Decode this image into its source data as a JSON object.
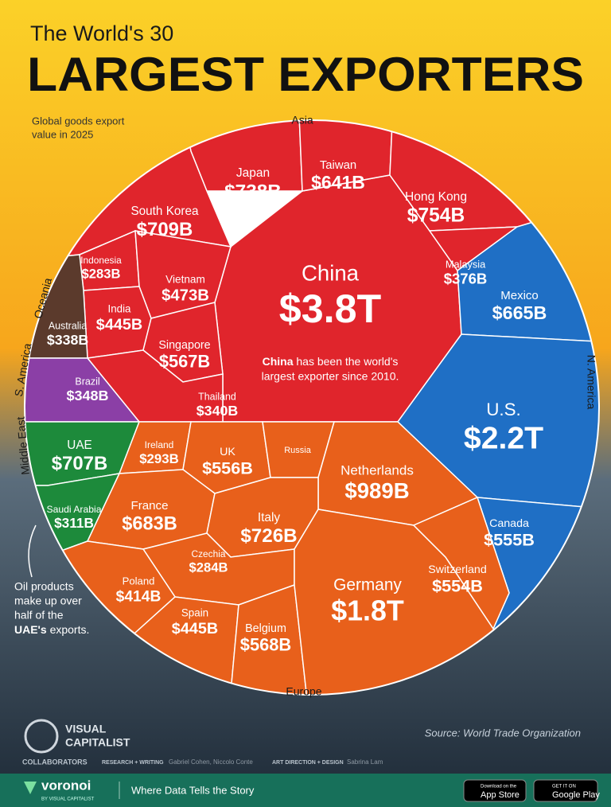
{
  "header": {
    "title_small": "The World's 30",
    "title_big": "LARGEST EXPORTERS",
    "subtitle_lines": [
      "Global goods export",
      "value in 2025"
    ]
  },
  "chart_data": {
    "type": "voronoi",
    "series": [
      {
        "name": "Asia",
        "color": "#e0252c",
        "categories": [
          "China",
          "Japan",
          "Taiwan",
          "Hong Kong",
          "South Korea",
          "Malaysia",
          "Indonesia",
          "Vietnam",
          "India",
          "Singapore",
          "Thailand"
        ],
        "values": [
          3800,
          738,
          641,
          754,
          709,
          376,
          283,
          473,
          445,
          567,
          340
        ],
        "value_labels": [
          "$3.8T",
          "$738B",
          "$641B",
          "$754B",
          "$709B",
          "$376B",
          "$283B",
          "$473B",
          "$445B",
          "$567B",
          "$340B"
        ]
      },
      {
        "name": "Oceania",
        "color": "#5b3a2c",
        "categories": [
          "Australia"
        ],
        "values": [
          338
        ],
        "value_labels": [
          "$338B"
        ]
      },
      {
        "name": "S. America",
        "color": "#8b3fa6",
        "categories": [
          "Brazil"
        ],
        "values": [
          348
        ],
        "value_labels": [
          "$348B"
        ]
      },
      {
        "name": "Middle East",
        "color": "#1d8a3b",
        "categories": [
          "UAE",
          "Saudi Arabia"
        ],
        "values": [
          707,
          311
        ],
        "value_labels": [
          "$707B",
          "$311B"
        ]
      },
      {
        "name": "N. America",
        "color": "#1f6fc5",
        "categories": [
          "Mexico",
          "U.S.",
          "Canada"
        ],
        "values": [
          665,
          2200,
          555
        ],
        "value_labels": [
          "$665B",
          "$2.2T",
          "$555B"
        ]
      },
      {
        "name": "Europe",
        "color": "#e8601b",
        "categories": [
          "Ireland",
          "UK",
          "Russia",
          "Netherlands",
          "France",
          "Italy",
          "Czechia",
          "Poland",
          "Spain",
          "Belgium",
          "Germany",
          "Switzerland"
        ],
        "values": [
          293,
          556,
          null,
          989,
          683,
          726,
          284,
          414,
          445,
          568,
          1800,
          554
        ],
        "value_labels": [
          "$293B",
          "$556B",
          null,
          "$989B",
          "$683B",
          "$726B",
          "$284B",
          "$414B",
          "$445B",
          "$568B",
          "$1.8T",
          "$554B"
        ]
      }
    ]
  },
  "china_note": {
    "bold": "China",
    "rest": " has been the world's",
    "line2": "largest exporter since 2010."
  },
  "uae_note": {
    "lines": [
      "Oil products",
      "make up over",
      "half of the"
    ],
    "bold": "UAE's",
    "end": " exports."
  },
  "source": "Source: World Trade Organization",
  "footer": {
    "brand_top": "VISUAL",
    "brand_bottom": "CAPITALIST",
    "collaborators": "COLLABORATORS",
    "research_label": "RESEARCH + WRITING",
    "research_names": "Gabriel Cohen, Niccolo Conte",
    "design_label": "ART DIRECTION + DESIGN",
    "design_names": "Sabrina Lam",
    "logo": "voronoi",
    "logo_sub": "BY VISUAL CAPITALIST",
    "tagline": "Where Data Tells the Story",
    "app_small": "Download on the",
    "app_big": "App Store",
    "play_small": "GET IT ON",
    "play_big": "Google Play"
  }
}
